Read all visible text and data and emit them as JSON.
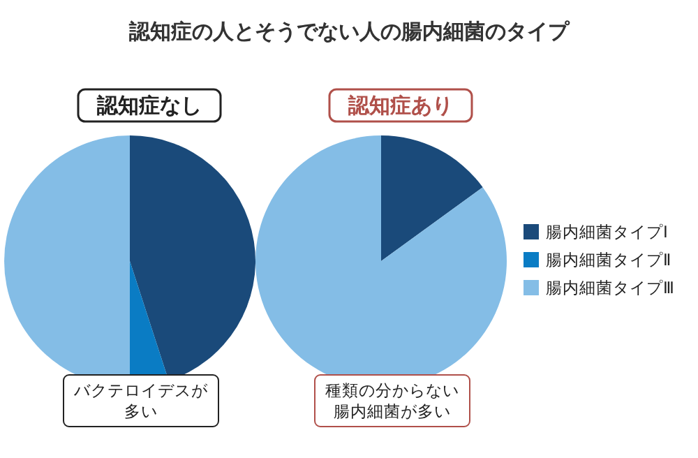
{
  "chart_data": {
    "type": "pie",
    "title": "認知症の人とそうでない人の腸内細菌のタイプ",
    "categories": [
      "腸内細菌タイプⅠ",
      "腸内細菌タイプⅡ",
      "腸内細菌タイプⅢ"
    ],
    "legend": "right",
    "series": [
      {
        "name": "認知症なし",
        "values": [
          45,
          5,
          50
        ],
        "colors": [
          "#1a4a7a",
          "#0a7cc4",
          "#84bde6"
        ]
      },
      {
        "name": "認知症あり",
        "values": [
          15,
          0,
          85
        ],
        "colors": [
          "#1a4a7a",
          "#0a7cc4",
          "#84bde6"
        ]
      }
    ],
    "annotations": [
      "バクテロイデスが多い",
      "種類の分からない腸内細菌が多い"
    ]
  }
}
